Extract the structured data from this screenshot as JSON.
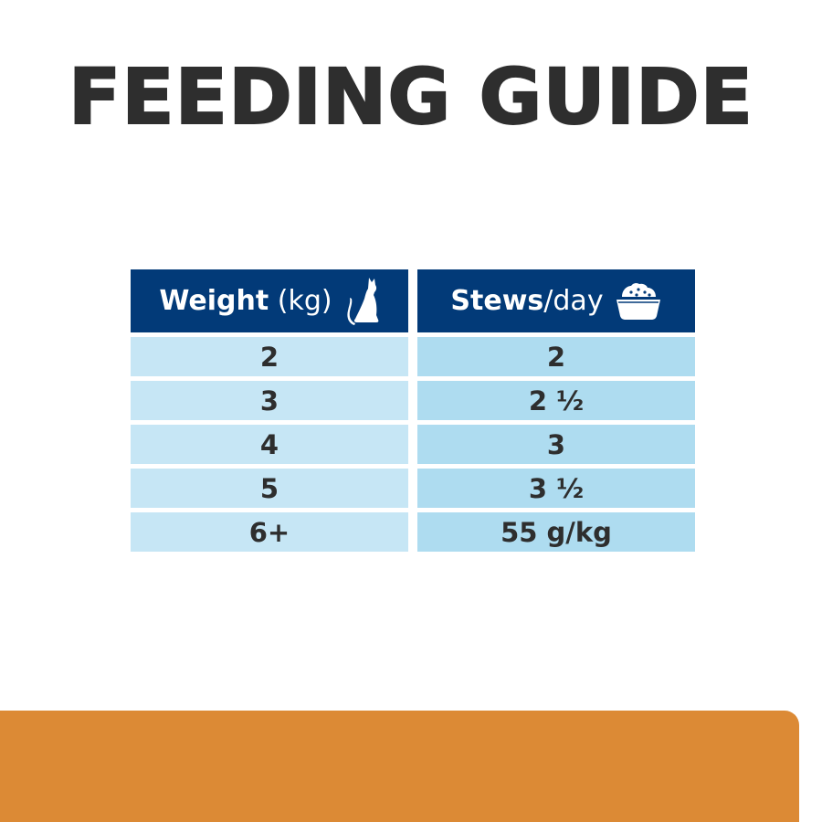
{
  "title": "FEEDING GUIDE",
  "table": {
    "weight_header": {
      "bold": "Weight",
      "light": "(kg)",
      "icon": "cat-icon"
    },
    "stews_header": {
      "bold": "Stews",
      "light": "/day",
      "icon": "food-bowl-icon"
    },
    "weights": [
      "2",
      "3",
      "4",
      "5",
      "6+"
    ],
    "stews": [
      "2",
      "2 ½",
      "3",
      "3 ½",
      "55 g/kg"
    ]
  },
  "colors": {
    "header": "#023a78",
    "left_rows": "#c6e6f5",
    "right_rows": "#aedcf0",
    "footer_band": "#dc8a35",
    "title": "#2e2e2e"
  }
}
